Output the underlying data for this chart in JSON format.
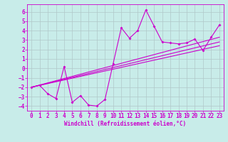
{
  "title": "",
  "xlabel": "Windchill (Refroidissement éolien,°C)",
  "ylabel": "",
  "background_color": "#c8ece9",
  "grid_color": "#b0c8c8",
  "line_color": "#cc00cc",
  "xlim": [
    -0.5,
    23.5
  ],
  "ylim": [
    -4.5,
    6.8
  ],
  "xticks": [
    0,
    1,
    2,
    3,
    4,
    5,
    6,
    7,
    8,
    9,
    10,
    11,
    12,
    13,
    14,
    15,
    16,
    17,
    18,
    19,
    20,
    21,
    22,
    23
  ],
  "yticks": [
    -4,
    -3,
    -2,
    -1,
    0,
    1,
    2,
    3,
    4,
    5,
    6
  ],
  "scatter_x": [
    0,
    1,
    2,
    3,
    4,
    5,
    6,
    7,
    8,
    9,
    10,
    11,
    12,
    13,
    14,
    15,
    16,
    17,
    18,
    19,
    20,
    21,
    22,
    23
  ],
  "scatter_y": [
    -2.0,
    -1.8,
    -2.7,
    -3.2,
    0.2,
    -3.6,
    -2.9,
    -3.9,
    -4.0,
    -3.3,
    0.5,
    4.3,
    3.2,
    4.0,
    6.2,
    4.5,
    2.8,
    2.7,
    2.6,
    2.7,
    3.1,
    1.9,
    3.3,
    4.6
  ],
  "reg_lines": [
    {
      "x0": 0,
      "y0": -2.0,
      "x1": 23,
      "y1": 3.3
    },
    {
      "x0": 0,
      "y0": -2.0,
      "x1": 23,
      "y1": 2.8
    },
    {
      "x0": 0,
      "y0": -2.0,
      "x1": 23,
      "y1": 2.4
    }
  ],
  "tick_fontsize": 5.5,
  "xlabel_fontsize": 5.5,
  "marker_size": 2.0,
  "line_width": 0.8
}
